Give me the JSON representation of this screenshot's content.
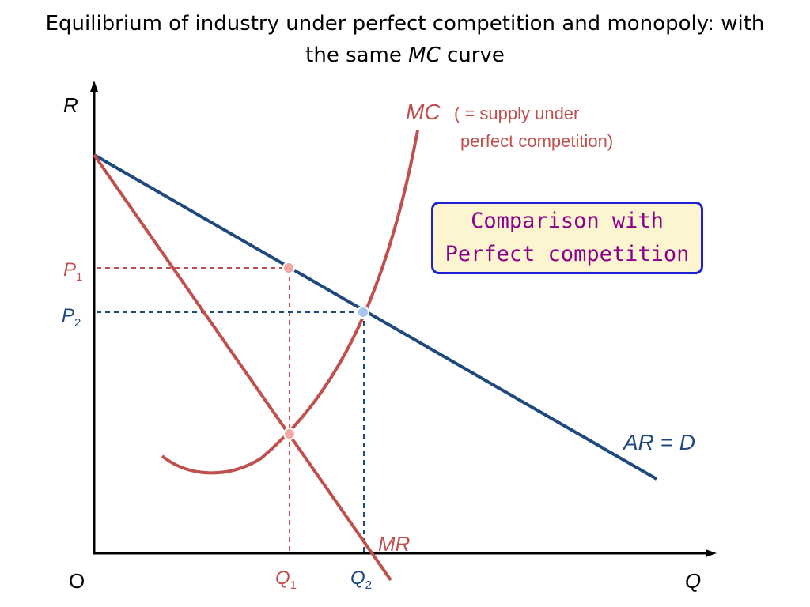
{
  "title": {
    "line1": "Equilibrium of  industry under perfect competition and monopoly: with",
    "line2_prefix": "the same ",
    "line2_italic": "MC",
    "line2_suffix": " curve"
  },
  "axes": {
    "y_label": "R",
    "x_label": "Q",
    "origin_label": "O"
  },
  "curves": {
    "mc_label": "MC",
    "mc_note_line1": "( = supply under",
    "mc_note_line2": "perfect competition)",
    "mr_label": "MR",
    "ar_label": "AR = D"
  },
  "levels": {
    "p1_main": "P",
    "p1_sub": "1",
    "p2_main": "P",
    "p2_sub": "2",
    "q1_main": "Q",
    "q1_sub": "1",
    "q2_main": "Q",
    "q2_sub": "2"
  },
  "callout": {
    "line1": "Comparison with",
    "line2": "Perfect competition"
  },
  "colors": {
    "mc_mr_red": "#c0504d",
    "ar_blue": "#1f497d",
    "point_red": "#f4a6a6",
    "point_blue": "#a6c8f0",
    "callout_border": "#1f1fd6",
    "callout_fill": "#fdf5cf",
    "callout_text": "#8c008c"
  }
}
